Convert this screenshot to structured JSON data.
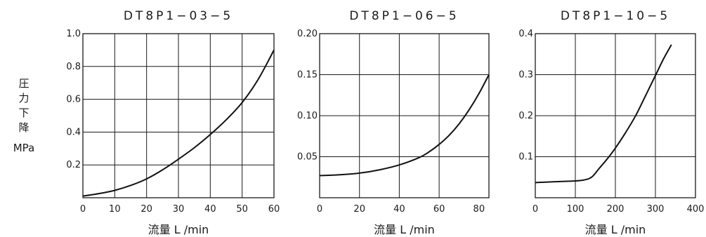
{
  "ylabel": {
    "chars": [
      "圧",
      "力",
      "下",
      "降"
    ],
    "unit": "MPa"
  },
  "chart_data": [
    {
      "type": "line",
      "title": "DT8P1−03−5",
      "xlabel": "流量 L /min",
      "xlim": [
        0,
        60
      ],
      "ylim": [
        0,
        1.0
      ],
      "xticks": [
        0,
        10,
        20,
        30,
        40,
        50,
        60
      ],
      "xtick_labels": [
        "0",
        "10",
        "20",
        "30",
        "40",
        "50",
        "60"
      ],
      "yticks": [
        0.2,
        0.4,
        0.6,
        0.8,
        1.0
      ],
      "ytick_labels": [
        "0.2",
        "0.4",
        "0.6",
        "0.8",
        "1.0"
      ],
      "grid": true,
      "series": [
        {
          "x": [
            0,
            5,
            10,
            15,
            20,
            25,
            30,
            35,
            40,
            45,
            50,
            55,
            60
          ],
          "y": [
            0.01,
            0.025,
            0.045,
            0.075,
            0.115,
            0.17,
            0.235,
            0.305,
            0.385,
            0.475,
            0.58,
            0.72,
            0.9
          ]
        }
      ]
    },
    {
      "type": "line",
      "title": "DT8P1−06−5",
      "xlabel": "流量 L /min",
      "xlim": [
        0,
        85
      ],
      "ylim": [
        0,
        0.2
      ],
      "xticks": [
        0,
        20,
        40,
        60,
        80
      ],
      "xtick_labels": [
        "0",
        "20",
        "40",
        "60",
        "80"
      ],
      "yticks": [
        0.05,
        0.1,
        0.15,
        0.2
      ],
      "ytick_labels": [
        "0.05",
        "0.10",
        "0.15",
        "0.20"
      ],
      "grid": true,
      "series": [
        {
          "x": [
            0,
            10,
            20,
            30,
            40,
            50,
            55,
            60,
            65,
            70,
            75,
            80,
            85
          ],
          "y": [
            0.027,
            0.028,
            0.03,
            0.034,
            0.04,
            0.049,
            0.056,
            0.065,
            0.076,
            0.09,
            0.107,
            0.127,
            0.15
          ]
        }
      ]
    },
    {
      "type": "line",
      "title": "DT8P1−10−5",
      "xlabel": "流量 L /min",
      "xlim": [
        0,
        400
      ],
      "ylim": [
        0,
        0.4
      ],
      "xticks": [
        0,
        100,
        200,
        300,
        400
      ],
      "xtick_labels": [
        "0",
        "100",
        "200",
        "300",
        "400"
      ],
      "yticks": [
        0.1,
        0.2,
        0.3,
        0.4
      ],
      "ytick_labels": [
        "0.1",
        "0.2",
        "0.3",
        "0.4"
      ],
      "grid": true,
      "series": [
        {
          "x": [
            0,
            50,
            100,
            120,
            135,
            145,
            160,
            180,
            200,
            225,
            250,
            275,
            300,
            320,
            340
          ],
          "y": [
            0.037,
            0.039,
            0.041,
            0.043,
            0.047,
            0.054,
            0.072,
            0.095,
            0.121,
            0.158,
            0.199,
            0.248,
            0.298,
            0.338,
            0.373
          ]
        }
      ]
    }
  ]
}
